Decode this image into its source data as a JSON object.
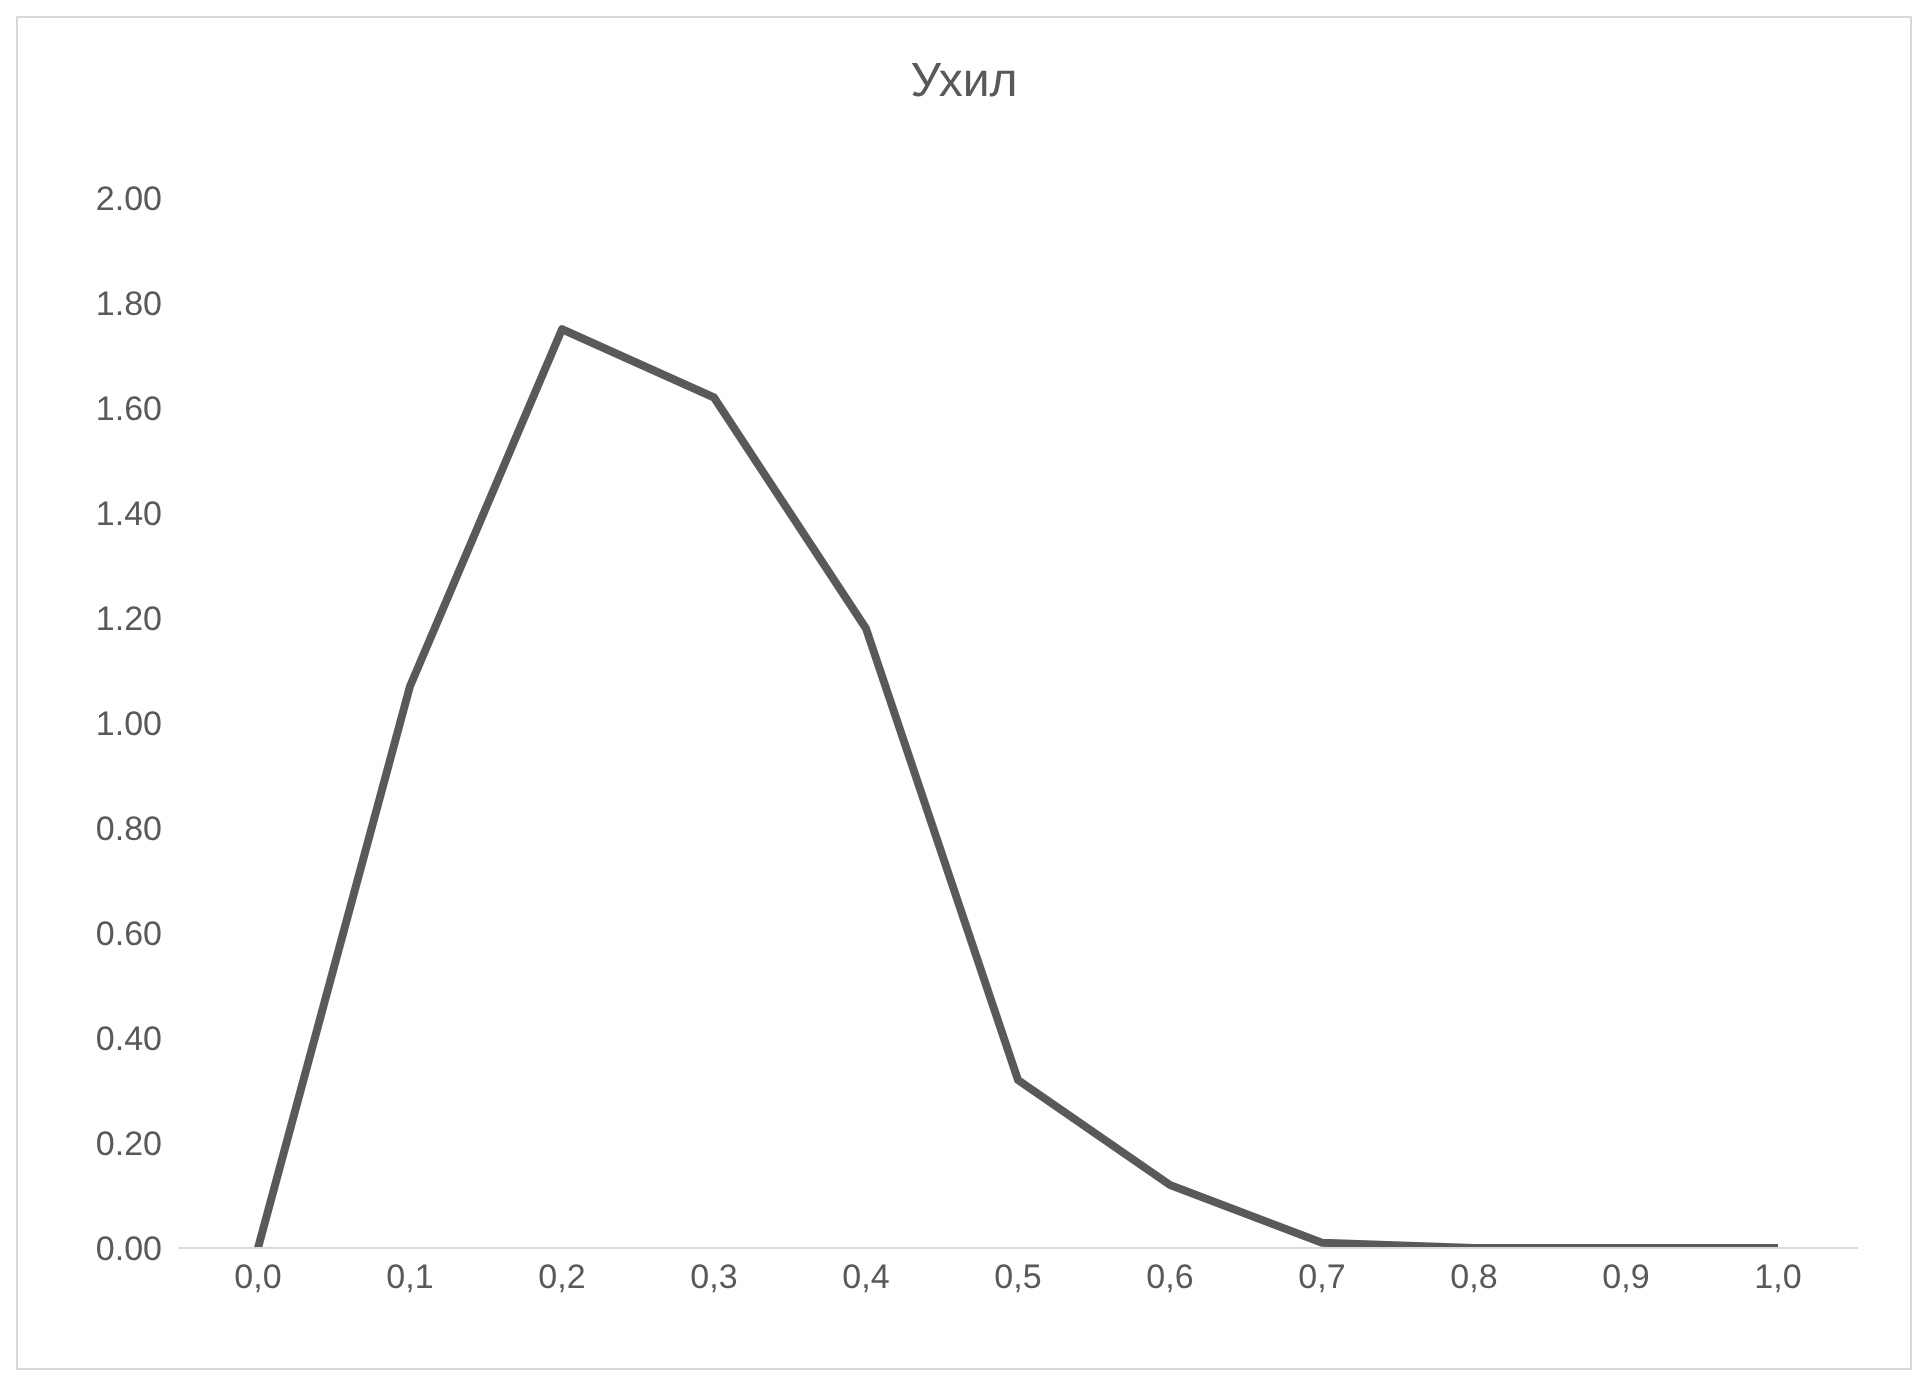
{
  "chart_data": {
    "type": "line",
    "title": "Ухил",
    "categories": [
      "0,0",
      "0,1",
      "0,2",
      "0,3",
      "0,4",
      "0,5",
      "0,6",
      "0,7",
      "0,8",
      "0,9",
      "1,0"
    ],
    "series": [
      {
        "color": "#595959",
        "values": [
          0,
          1.07,
          1.75,
          1.62,
          1.18,
          0.32,
          0.12,
          0.01,
          0,
          0,
          0
        ]
      }
    ],
    "ylim": [
      0,
      2
    ],
    "yticks": [
      {
        "value": 0,
        "label": "0.00"
      },
      {
        "value": 0.2,
        "label": "0.20"
      },
      {
        "value": 0.4,
        "label": "0.40"
      },
      {
        "value": 0.6,
        "label": "0.60"
      },
      {
        "value": 0.8,
        "label": "0.80"
      },
      {
        "value": 1,
        "label": "1.00"
      },
      {
        "value": 1.2,
        "label": "1.20"
      },
      {
        "value": 1.4,
        "label": "1.40"
      },
      {
        "value": 1.6,
        "label": "1.60"
      },
      {
        "value": 1.8,
        "label": "1.80"
      },
      {
        "value": 2,
        "label": "2.00"
      }
    ],
    "grid": false,
    "legend": false,
    "marker": "none",
    "line_style": "solid"
  }
}
